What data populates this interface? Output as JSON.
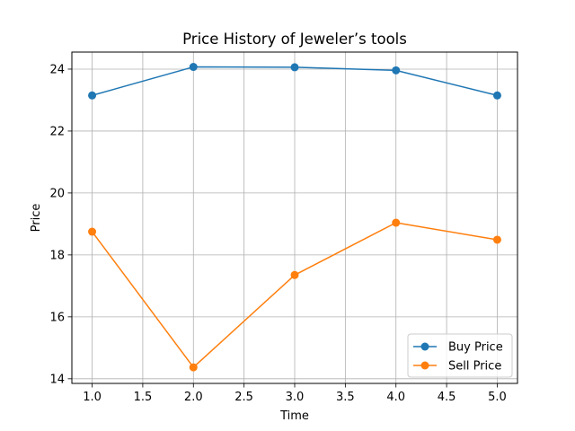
{
  "chart_data": {
    "type": "line",
    "title": "Price History of Jeweler’s tools",
    "xlabel": "Time",
    "ylabel": "Price",
    "xlim": [
      0.8,
      5.2
    ],
    "ylim": [
      13.85,
      24.55
    ],
    "xticks": [
      "1.0",
      "1.5",
      "2.0",
      "2.5",
      "3.0",
      "3.5",
      "4.0",
      "4.5",
      "5.0"
    ],
    "yticks": [
      "14",
      "16",
      "18",
      "20",
      "22",
      "24"
    ],
    "grid": true,
    "legend_position": "bottom-right",
    "x": [
      1,
      2,
      3,
      4,
      5
    ],
    "series": [
      {
        "name": "Buy Price",
        "color": "#1f77b4",
        "marker": "circle",
        "values": [
          23.15,
          24.07,
          24.06,
          23.96,
          23.15
        ]
      },
      {
        "name": "Sell Price",
        "color": "#ff7f0e",
        "marker": "circle",
        "values": [
          18.75,
          14.37,
          17.35,
          19.04,
          18.49
        ]
      }
    ]
  }
}
